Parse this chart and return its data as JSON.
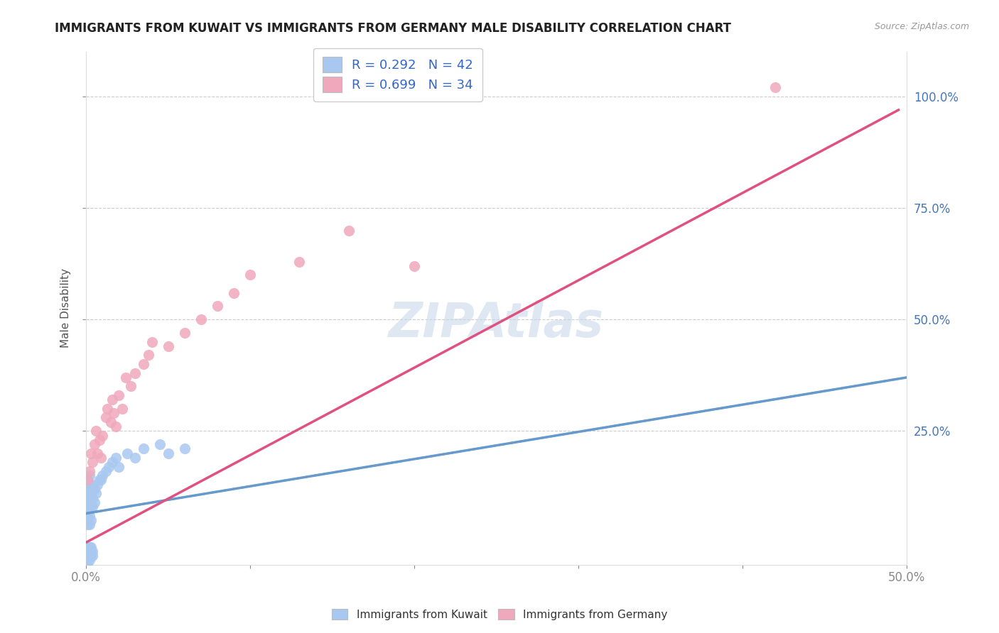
{
  "title": "IMMIGRANTS FROM KUWAIT VS IMMIGRANTS FROM GERMANY MALE DISABILITY CORRELATION CHART",
  "source": "Source: ZipAtlas.com",
  "ylabel": "Male Disability",
  "xlim": [
    0.0,
    0.5
  ],
  "ylim": [
    -0.05,
    1.1
  ],
  "xticks": [
    0.0,
    0.1,
    0.2,
    0.3,
    0.4,
    0.5
  ],
  "xtick_labels": [
    "0.0%",
    "",
    "",
    "",
    "",
    "50.0%"
  ],
  "ytick_labels": [
    "25.0%",
    "50.0%",
    "75.0%",
    "100.0%"
  ],
  "yticks": [
    0.25,
    0.5,
    0.75,
    1.0
  ],
  "kuwait_R": 0.292,
  "kuwait_N": 42,
  "germany_R": 0.699,
  "germany_N": 34,
  "kuwait_color": "#a8c8f0",
  "germany_color": "#f0a8bc",
  "kuwait_line_color": "#6699cc",
  "germany_line_color": "#e05080",
  "watermark": "ZIPAtlas",
  "watermark_color": "#c8d8ea",
  "kuwait_x": [
    0.001,
    0.001,
    0.001,
    0.001,
    0.001,
    0.001,
    0.001,
    0.001,
    0.001,
    0.001,
    0.002,
    0.002,
    0.002,
    0.002,
    0.002,
    0.002,
    0.002,
    0.003,
    0.003,
    0.003,
    0.003,
    0.004,
    0.004,
    0.004,
    0.005,
    0.005,
    0.006,
    0.007,
    0.008,
    0.009,
    0.01,
    0.012,
    0.014,
    0.016,
    0.018,
    0.02,
    0.025,
    0.03,
    0.035,
    0.045,
    0.05,
    0.06
  ],
  "kuwait_y": [
    0.04,
    0.05,
    0.06,
    0.07,
    0.08,
    0.09,
    0.1,
    0.11,
    0.12,
    0.14,
    0.04,
    0.06,
    0.08,
    0.1,
    0.12,
    0.13,
    0.15,
    0.05,
    0.08,
    0.1,
    0.12,
    0.08,
    0.1,
    0.13,
    0.09,
    0.12,
    0.11,
    0.13,
    0.14,
    0.14,
    0.15,
    0.16,
    0.17,
    0.18,
    0.19,
    0.17,
    0.2,
    0.19,
    0.21,
    0.22,
    0.2,
    0.21
  ],
  "kuwait_y_neg": [
    -0.02,
    -0.03,
    -0.04,
    -0.05,
    -0.02,
    -0.01,
    -0.03,
    -0.04,
    -0.02,
    -0.01,
    -0.02,
    -0.03,
    -0.01,
    -0.02,
    -0.03
  ],
  "kuwait_x_neg": [
    0.001,
    0.001,
    0.001,
    0.001,
    0.001,
    0.001,
    0.001,
    0.002,
    0.002,
    0.002,
    0.003,
    0.003,
    0.003,
    0.004,
    0.004
  ],
  "germany_x": [
    0.001,
    0.002,
    0.003,
    0.004,
    0.005,
    0.006,
    0.007,
    0.008,
    0.009,
    0.01,
    0.012,
    0.013,
    0.015,
    0.016,
    0.017,
    0.018,
    0.02,
    0.022,
    0.024,
    0.027,
    0.03,
    0.035,
    0.038,
    0.04,
    0.05,
    0.06,
    0.07,
    0.08,
    0.09,
    0.1,
    0.13,
    0.16,
    0.2,
    0.42
  ],
  "germany_y": [
    0.14,
    0.16,
    0.2,
    0.18,
    0.22,
    0.25,
    0.2,
    0.23,
    0.19,
    0.24,
    0.28,
    0.3,
    0.27,
    0.32,
    0.29,
    0.26,
    0.33,
    0.3,
    0.37,
    0.35,
    0.38,
    0.4,
    0.42,
    0.45,
    0.44,
    0.47,
    0.5,
    0.53,
    0.56,
    0.6,
    0.63,
    0.7,
    0.62,
    1.02
  ],
  "kuwait_trend_x": [
    0.0,
    0.5
  ],
  "kuwait_trend_y": [
    0.065,
    0.37
  ],
  "germany_trend_x": [
    0.0,
    0.495
  ],
  "germany_trend_y": [
    0.0,
    0.97
  ]
}
